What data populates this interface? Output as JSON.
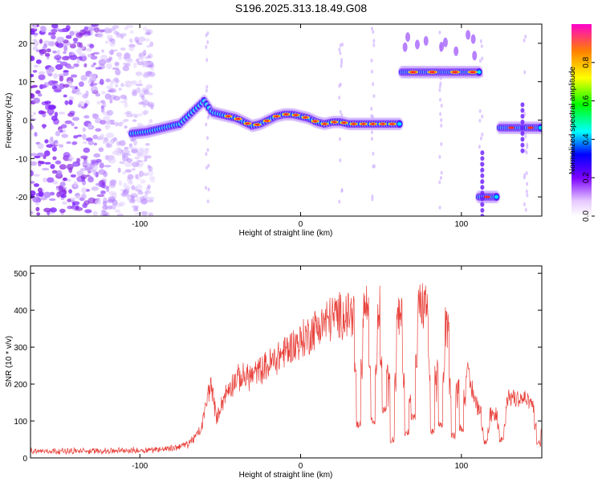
{
  "title": "S196.2025.313.18.49.G08",
  "chart_data": [
    {
      "type": "heatmap",
      "xlabel": "Height of straight line (km)",
      "ylabel": "Frequency (Hz)",
      "xlim": [
        -168,
        150
      ],
      "ylim": [
        -25,
        25
      ],
      "xticks": [
        -100,
        0,
        100
      ],
      "yticks": [
        -20,
        -10,
        0,
        10,
        20
      ],
      "colorbar": {
        "label": "Normalized spectral amplitude",
        "range": [
          0.0,
          1.0
        ],
        "ticks": [
          "0.0",
          "0.2",
          "0.4",
          "0.6",
          "0.8"
        ]
      },
      "track": {
        "x": [
          -105,
          -95,
          -85,
          -75,
          -65,
          -60,
          -55,
          -50,
          -45,
          -40,
          -35,
          -30,
          -25,
          -20,
          -15,
          -10,
          -5,
          0,
          5,
          10,
          15,
          20,
          25,
          30,
          40,
          50,
          60,
          62
        ],
        "y": [
          -3.5,
          -3,
          -2,
          -1,
          3,
          5,
          2,
          1.5,
          1,
          0.5,
          -0.5,
          -1.5,
          -1,
          0,
          1,
          1.5,
          1.5,
          1,
          0.5,
          -0.5,
          -1,
          -0.5,
          -0.5,
          -1,
          -1,
          -1,
          -1,
          -1
        ]
      },
      "upper_band": {
        "x_range": [
          63,
          112
        ],
        "y": 12.5
      },
      "low_segment": {
        "x_range": [
          111,
          123
        ],
        "y": -20
      },
      "right_segment": {
        "x_range": [
          124,
          150
        ],
        "y": -2
      },
      "noise_region": {
        "x_range": [
          -168,
          -92
        ],
        "y_range": [
          -25,
          25
        ]
      }
    },
    {
      "type": "line",
      "xlabel": "Height of straight line (km)",
      "ylabel": "SNR (10 * v/v)",
      "xlim": [
        -168,
        150
      ],
      "ylim": [
        0,
        520
      ],
      "xticks": [
        -100,
        0,
        100
      ],
      "yticks": [
        0,
        100,
        200,
        300,
        400,
        500
      ],
      "color": "#e8403a",
      "envelope": {
        "x": [
          -168,
          -130,
          -100,
          -80,
          -70,
          -62,
          -56,
          -52,
          -50,
          -45,
          -40,
          -30,
          -20,
          -10,
          0,
          10,
          20,
          30,
          40,
          50,
          60,
          70,
          80,
          90,
          100,
          105,
          110,
          120,
          125,
          130,
          140,
          145,
          150
        ],
        "y": [
          20,
          20,
          22,
          28,
          40,
          80,
          220,
          110,
          150,
          200,
          230,
          240,
          270,
          310,
          340,
          380,
          410,
          420,
          440,
          440,
          400,
          430,
          450,
          380,
          320,
          220,
          150,
          120,
          140,
          180,
          170,
          150,
          140
        ]
      },
      "dips": [
        {
          "x": 36,
          "y": 80
        },
        {
          "x": 45,
          "y": 90
        },
        {
          "x": 52,
          "y": 120
        },
        {
          "x": 57,
          "y": 40
        },
        {
          "x": 66,
          "y": 60
        },
        {
          "x": 70,
          "y": 100
        },
        {
          "x": 82,
          "y": 60
        },
        {
          "x": 87,
          "y": 80
        },
        {
          "x": 95,
          "y": 50
        },
        {
          "x": 100,
          "y": 70
        },
        {
          "x": 115,
          "y": 30
        },
        {
          "x": 125,
          "y": 40
        },
        {
          "x": 148,
          "y": 30
        }
      ]
    }
  ]
}
